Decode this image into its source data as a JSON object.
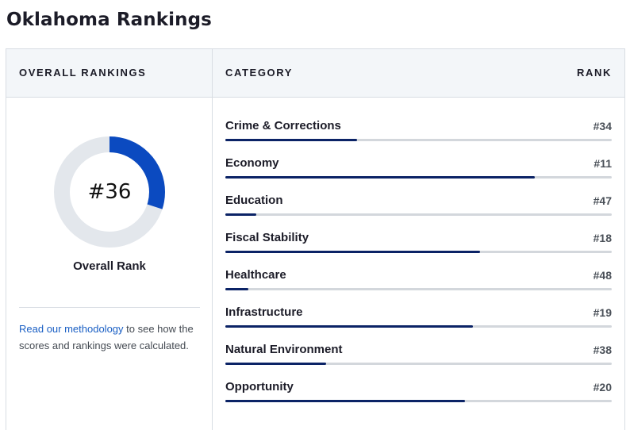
{
  "title": "Oklahoma Rankings",
  "table": {
    "overall_header": "OVERALL RANKINGS",
    "category_header": "CATEGORY",
    "rank_header": "RANK"
  },
  "overall": {
    "rank_label": "#36",
    "caption": "Overall Rank",
    "donut_fill_fraction": 0.3,
    "donut_color": "#0b4ac0",
    "donut_track_color": "#e3e7ec"
  },
  "methodology": {
    "link_text": "Read our methodology",
    "rest_text": " to see how the scores and rankings were calculated."
  },
  "colors": {
    "bar_fill": "#0b2366",
    "bar_track": "#d3d7dc",
    "link": "#1a5fc4"
  },
  "categories": [
    {
      "name": "Crime & Corrections",
      "rank": "#34",
      "bar_fraction": 0.34
    },
    {
      "name": "Economy",
      "rank": "#11",
      "bar_fraction": 0.8
    },
    {
      "name": "Education",
      "rank": "#47",
      "bar_fraction": 0.08
    },
    {
      "name": "Fiscal Stability",
      "rank": "#18",
      "bar_fraction": 0.66
    },
    {
      "name": "Healthcare",
      "rank": "#48",
      "bar_fraction": 0.06
    },
    {
      "name": "Infrastructure",
      "rank": "#19",
      "bar_fraction": 0.64
    },
    {
      "name": "Natural Environment",
      "rank": "#38",
      "bar_fraction": 0.26
    },
    {
      "name": "Opportunity",
      "rank": "#20",
      "bar_fraction": 0.62
    }
  ]
}
